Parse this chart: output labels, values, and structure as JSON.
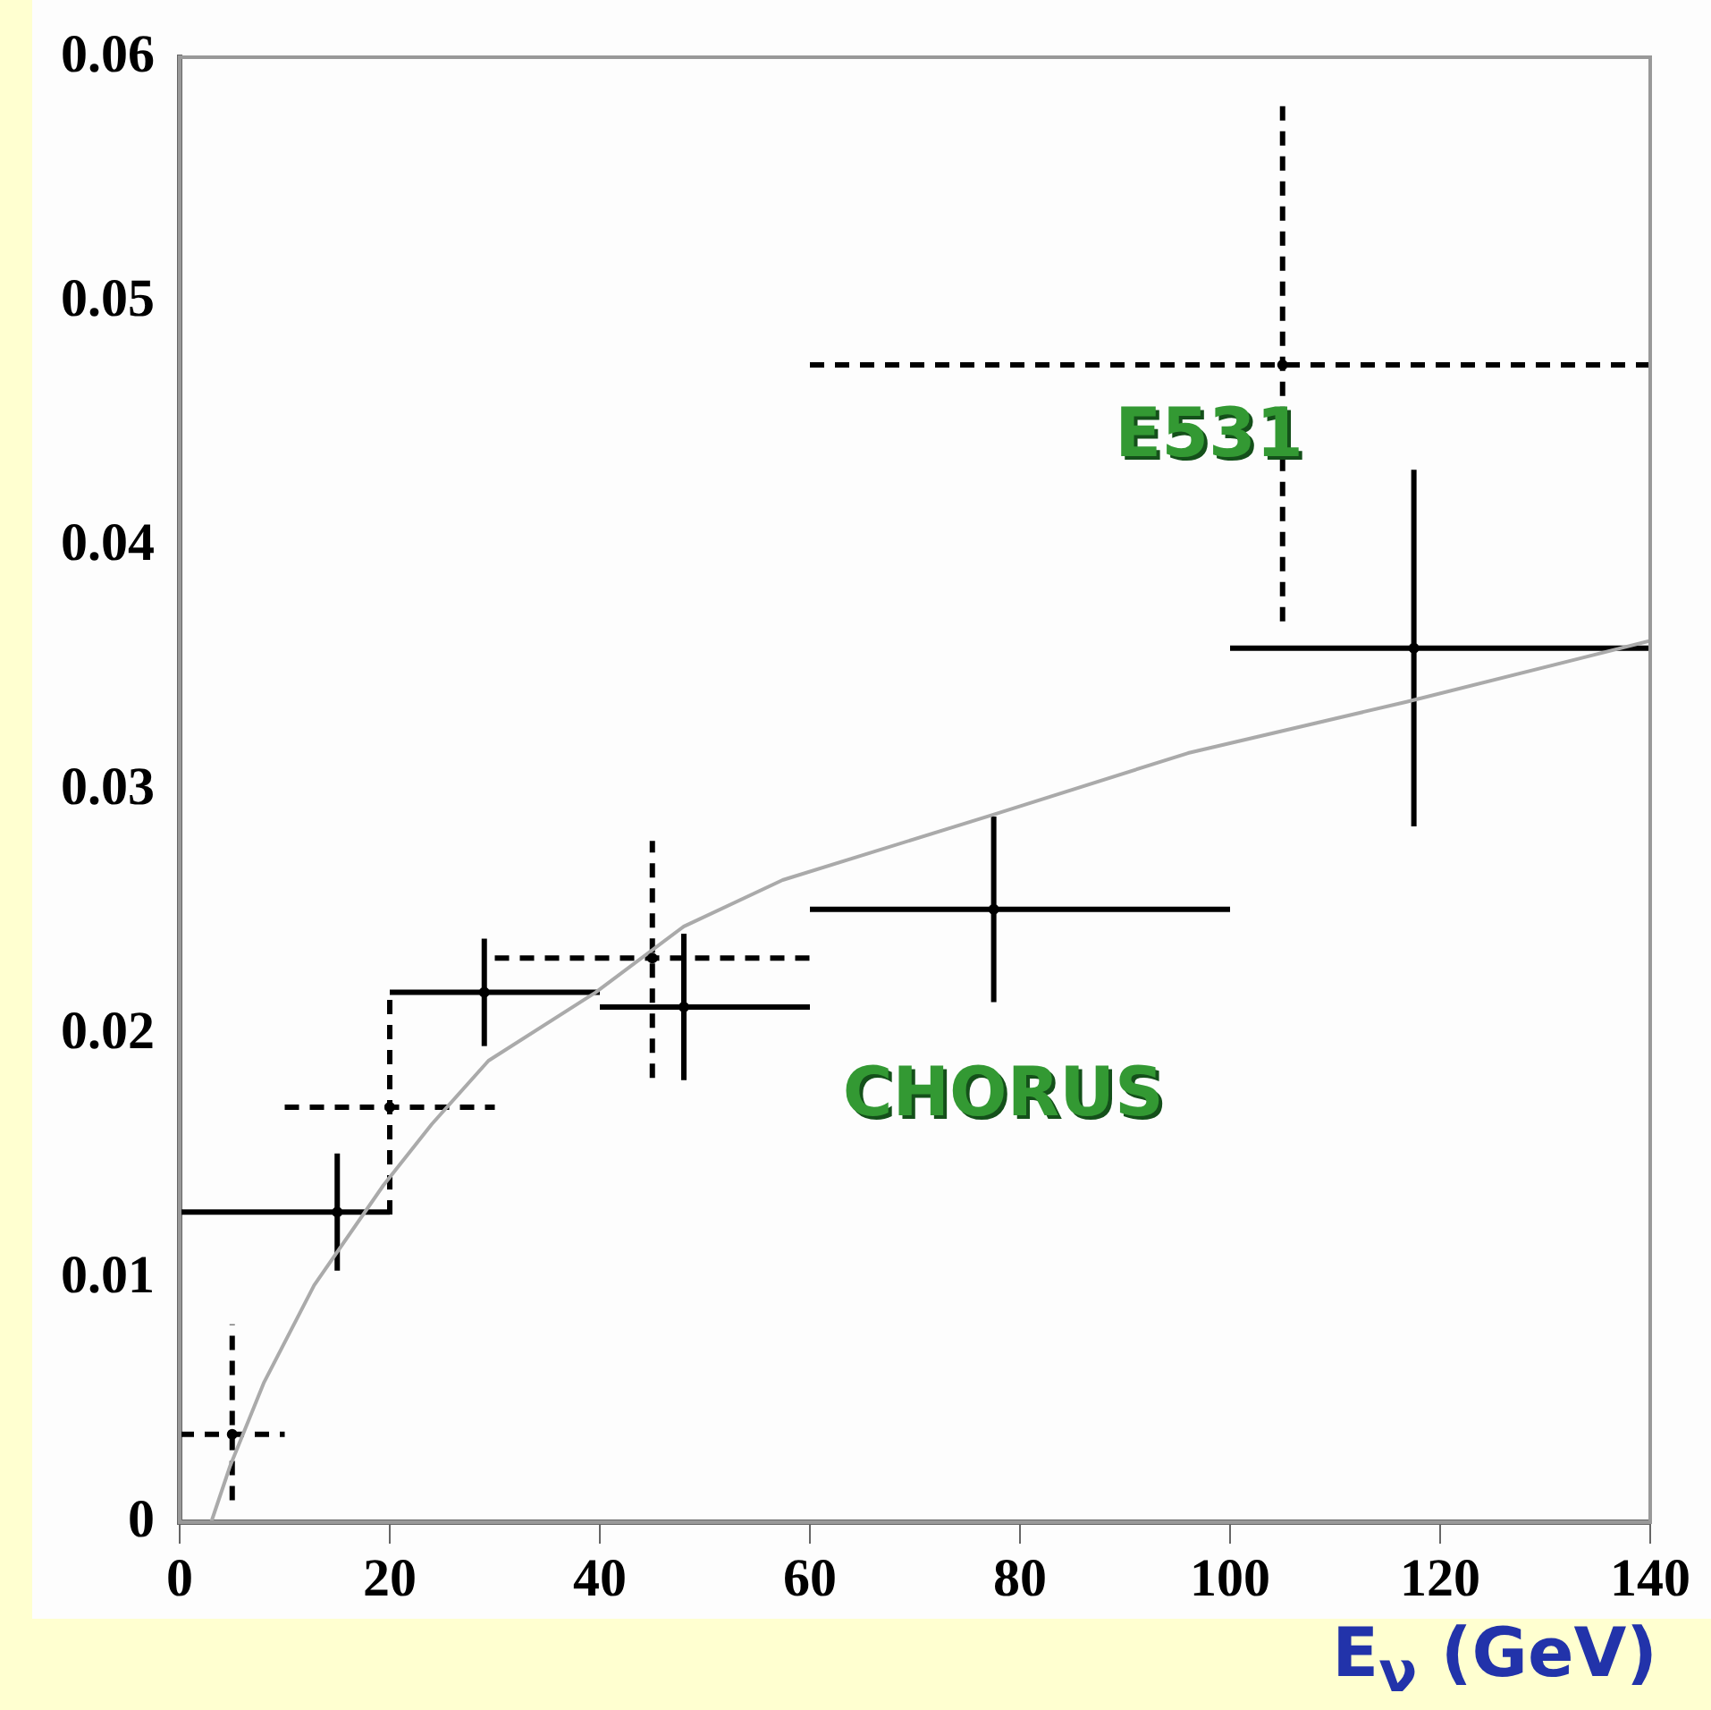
{
  "chart_data": {
    "type": "scatter",
    "xlabel": "E$_{ν}$ (GeV)",
    "xlim": [
      0,
      140
    ],
    "xticks": [
      0,
      20,
      40,
      60,
      80,
      100,
      120,
      140
    ],
    "ylim": [
      0,
      0.06
    ],
    "yticks": [
      0,
      0.01,
      0.02,
      0.03,
      0.04,
      0.05,
      0.06
    ],
    "grid": false,
    "legend": false,
    "series": [
      {
        "color": "#000000",
        "line_style": "solid",
        "x": [
          15,
          29,
          48,
          77.5,
          117.5
        ],
        "values": [
          0.0127,
          0.0217,
          0.0211,
          0.0251,
          0.0358
        ],
        "errors": [
          0.0024,
          0.0022,
          0.003,
          0.0038,
          0.0073
        ],
        "xerrors": [
          [
            0,
            20
          ],
          [
            20,
            40
          ],
          [
            40,
            60
          ],
          [
            60,
            100
          ],
          [
            100,
            140
          ]
        ]
      },
      {
        "color": "#000000",
        "line_style": "dashed",
        "x": [
          5,
          20,
          45,
          105
        ],
        "values": [
          0.0036,
          0.017,
          0.0231,
          0.0474
        ],
        "errors": [
          [
            0.0009,
            0.0081
          ],
          [
            0.0126,
            0.0217
          ],
          [
            0.0182,
            0.0279
          ],
          [
            0.0369,
            0.058
          ]
        ],
        "xerrors": [
          [
            0,
            10
          ],
          [
            10,
            30
          ],
          [
            30,
            60
          ],
          [
            60,
            140
          ]
        ]
      },
      {
        "type": "line",
        "color": "#aaaaaa",
        "x": [
          3,
          4.8,
          8,
          12.8,
          19.4,
          24,
          29.4,
          39.6,
          48,
          57.4,
          77.6,
          96,
          116.8,
          140
        ],
        "values": [
          0,
          0.0023,
          0.0057,
          0.0097,
          0.0138,
          0.0163,
          0.0189,
          0.0217,
          0.0244,
          0.0263,
          0.029,
          0.0315,
          0.0336,
          0.0361
        ]
      }
    ],
    "annotations": [
      "E531",
      "CHORUS"
    ]
  }
}
